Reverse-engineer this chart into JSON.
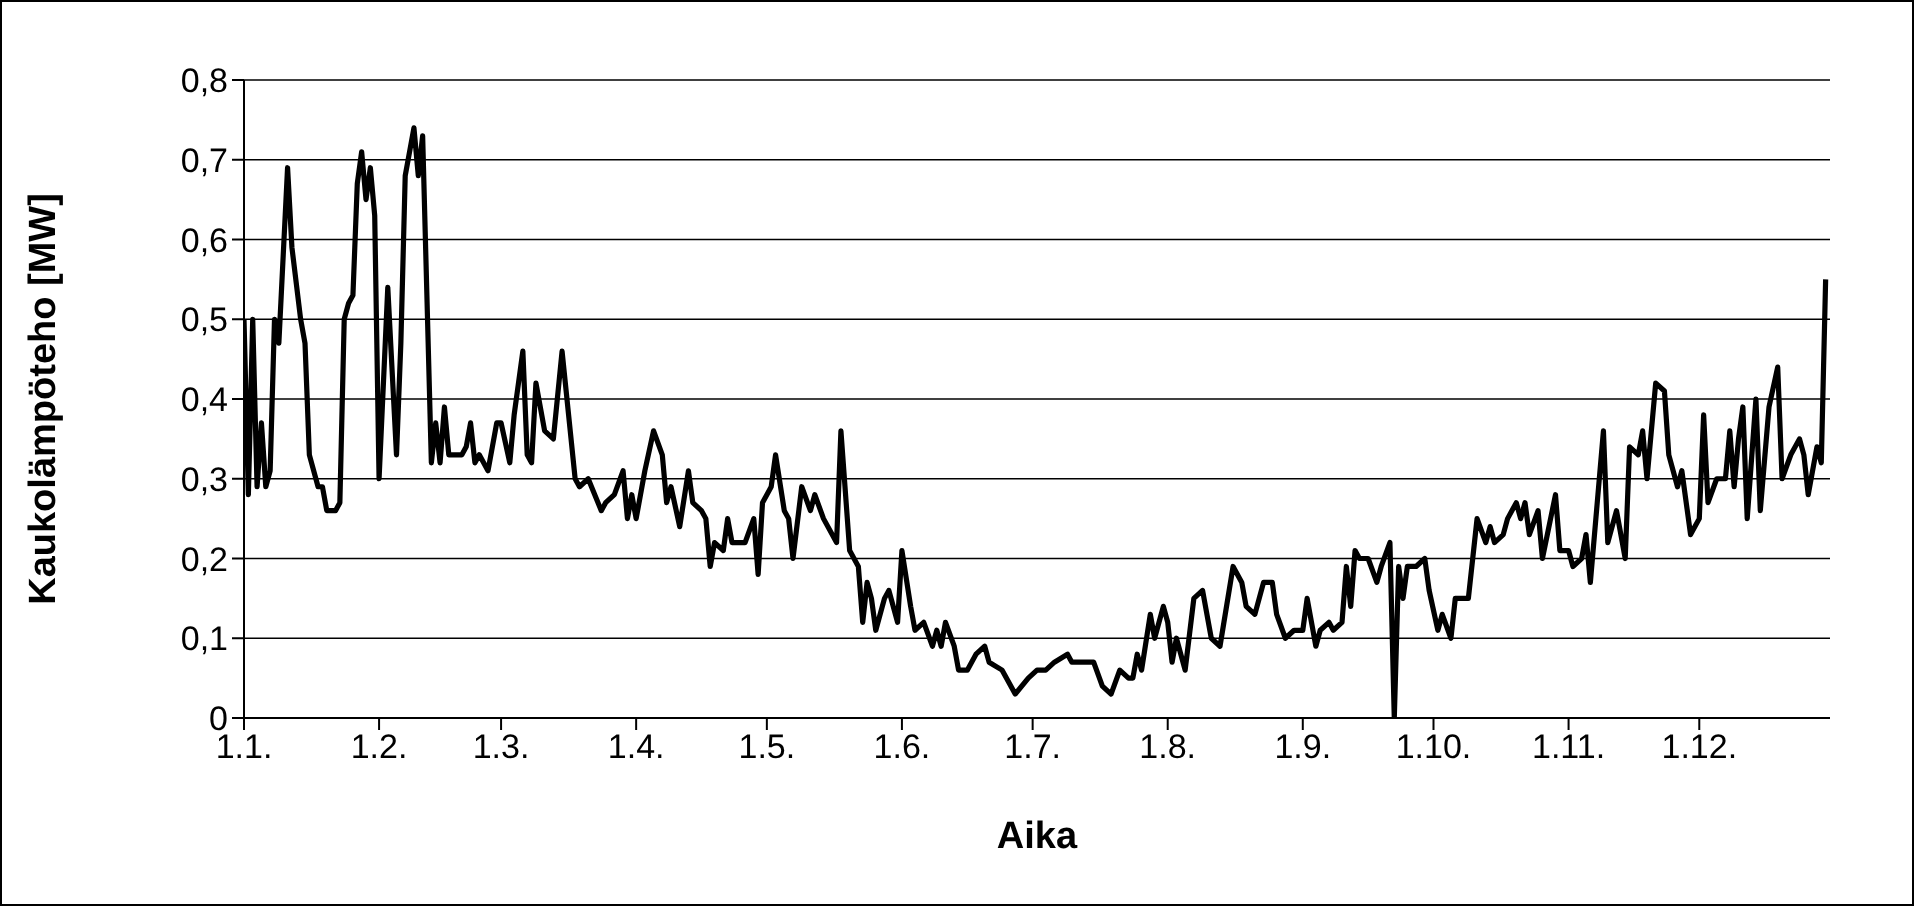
{
  "chart_data": {
    "type": "line",
    "xlabel": "Aika",
    "ylabel": "Kaukolämpöteho [MW]",
    "xlim": [
      "--01-01",
      "--12-31"
    ],
    "xticks": [
      {
        "value": "--01-01",
        "label": "1.1."
      },
      {
        "value": "--02-01",
        "label": "1.2."
      },
      {
        "value": "--03-01",
        "label": "1.3."
      },
      {
        "value": "--04-01",
        "label": "1.4."
      },
      {
        "value": "--05-01",
        "label": "1.5."
      },
      {
        "value": "--06-01",
        "label": "1.6."
      },
      {
        "value": "--07-01",
        "label": "1.7."
      },
      {
        "value": "--08-01",
        "label": "1.8."
      },
      {
        "value": "--09-01",
        "label": "1.9."
      },
      {
        "value": "--10-01",
        "label": "1.10."
      },
      {
        "value": "--11-01",
        "label": "1.11."
      },
      {
        "value": "--12-01",
        "label": "1.12."
      }
    ],
    "ylim": [
      0,
      0.8
    ],
    "yticks": [
      0,
      {
        "value": 0.1,
        "label": "0,1"
      },
      {
        "value": 0.2,
        "label": "0,2"
      },
      {
        "value": 0.3,
        "label": "0,3"
      },
      {
        "value": 0.4,
        "label": "0,4"
      },
      {
        "value": 0.5,
        "label": "0,5"
      },
      {
        "value": 0.6,
        "label": "0,6"
      },
      {
        "value": 0.7,
        "label": "0,7"
      },
      {
        "value": 0.8,
        "label": "0,8"
      }
    ],
    "grid": "y",
    "legend": false,
    "marker": "none",
    "line_style": "solid",
    "x": [
      "--01-01",
      "--01-02",
      "--01-03",
      "--01-04",
      "--01-05",
      "--01-06",
      "--01-07",
      "--01-08",
      "--01-09",
      "--01-11",
      "--01-12",
      "--01-14",
      "--01-15",
      "--01-16",
      "--01-18",
      "--01-19",
      "--01-20",
      "--01-22",
      "--01-23",
      "--01-24",
      "--01-25",
      "--01-26",
      "--01-27",
      "--01-28",
      "--01-29",
      "--01-30",
      "--01-31",
      "--02-01",
      "--02-03",
      "--02-05",
      "--02-06",
      "--02-07",
      "--02-09",
      "--02-10",
      "--02-11",
      "--02-13",
      "--02-14",
      "--02-15",
      "--02-16",
      "--02-17",
      "--02-20",
      "--02-21",
      "--02-22",
      "--02-23",
      "--02-24",
      "--02-26",
      "--02-27",
      "--02-28",
      "--03-01",
      "--03-03",
      "--03-04",
      "--03-06",
      "--03-07",
      "--03-08",
      "--03-09",
      "--03-11",
      "--03-13",
      "--03-15",
      "--03-18",
      "--03-19",
      "--03-21",
      "--03-24",
      "--03-25",
      "--03-27",
      "--03-29",
      "--03-30",
      "--03-31",
      "--04-01",
      "--04-03",
      "--04-05",
      "--04-07",
      "--04-08",
      "--04-09",
      "--04-11",
      "--04-13",
      "--04-14",
      "--04-16",
      "--04-17",
      "--04-18",
      "--04-19",
      "--04-21",
      "--04-22",
      "--04-23",
      "--04-26",
      "--04-28",
      "--04-29",
      "--04-30",
      "--05-02",
      "--05-03",
      "--05-05",
      "--05-06",
      "--05-07",
      "--05-09",
      "--05-11",
      "--05-12",
      "--05-14",
      "--05-17",
      "--05-18",
      "--05-20",
      "--05-22",
      "--05-23",
      "--05-24",
      "--05-25",
      "--05-26",
      "--05-28",
      "--05-29",
      "--05-31",
      "--06-01",
      "--06-03",
      "--06-04",
      "--06-06",
      "--06-08",
      "--06-09",
      "--06-10",
      "--06-11",
      "--06-13",
      "--06-14",
      "--06-16",
      "--06-18",
      "--06-20",
      "--06-21",
      "--06-24",
      "--06-27",
      "--06-30",
      "--07-02",
      "--07-04",
      "--07-06",
      "--07-09",
      "--07-10",
      "--07-12",
      "--07-15",
      "--07-17",
      "--07-19",
      "--07-21",
      "--07-23",
      "--07-24",
      "--07-25",
      "--07-26",
      "--07-28",
      "--07-29",
      "--07-31",
      "--08-01",
      "--08-02",
      "--08-03",
      "--08-05",
      "--08-07",
      "--08-09",
      "--08-11",
      "--08-13",
      "--08-16",
      "--08-18",
      "--08-19",
      "--08-21",
      "--08-22",
      "--08-23",
      "--08-25",
      "--08-26",
      "--08-28",
      "--08-30",
      "--09-01",
      "--09-02",
      "--09-04",
      "--09-05",
      "--09-07",
      "--09-08",
      "--09-10",
      "--09-11",
      "--09-12",
      "--09-13",
      "--09-14",
      "--09-16",
      "--09-18",
      "--09-19",
      "--09-21",
      "--09-22",
      "--09-23",
      "--09-24",
      "--09-25",
      "--09-27",
      "--09-29",
      "--09-30",
      "--10-02",
      "--10-03",
      "--10-05",
      "--10-06",
      "--10-09",
      "--10-11",
      "--10-13",
      "--10-14",
      "--10-15",
      "--10-17",
      "--10-18",
      "--10-20",
      "--10-21",
      "--10-22",
      "--10-23",
      "--10-25",
      "--10-26",
      "--10-29",
      "--10-30",
      "--11-01",
      "--11-02",
      "--11-04",
      "--11-05",
      "--11-06",
      "--11-09",
      "--11-10",
      "--11-12",
      "--11-14",
      "--11-15",
      "--11-17",
      "--11-18",
      "--11-19",
      "--11-21",
      "--11-23",
      "--11-24",
      "--11-26",
      "--11-27",
      "--11-29",
      "--11-30",
      "--12-01",
      "--12-02",
      "--12-03",
      "--12-05",
      "--12-07",
      "--12-08",
      "--12-09",
      "--12-10",
      "--12-11",
      "--12-12",
      "--12-14",
      "--12-15",
      "--12-17",
      "--12-19",
      "--12-20",
      "--12-22",
      "--12-24",
      "--12-25",
      "--12-26",
      "--12-28",
      "--12-29",
      "--12-30"
    ],
    "series": [
      {
        "color": "#000000",
        "values": [
          0.5,
          0.28,
          0.5,
          0.29,
          0.37,
          0.29,
          0.31,
          0.5,
          0.47,
          0.69,
          0.59,
          0.5,
          0.47,
          0.33,
          0.29,
          0.29,
          0.26,
          0.26,
          0.27,
          0.5,
          0.52,
          0.53,
          0.67,
          0.71,
          0.65,
          0.69,
          0.63,
          0.3,
          0.54,
          0.33,
          0.47,
          0.68,
          0.74,
          0.68,
          0.73,
          0.32,
          0.37,
          0.32,
          0.39,
          0.33,
          0.33,
          0.34,
          0.37,
          0.32,
          0.33,
          0.31,
          0.34,
          0.37,
          0.37,
          0.32,
          0.38,
          0.46,
          0.33,
          0.32,
          0.42,
          0.36,
          0.35,
          0.46,
          0.3,
          0.29,
          0.3,
          0.26,
          0.27,
          0.28,
          0.31,
          0.25,
          0.28,
          0.25,
          0.31,
          0.36,
          0.33,
          0.27,
          0.29,
          0.24,
          0.31,
          0.27,
          0.26,
          0.25,
          0.19,
          0.22,
          0.21,
          0.25,
          0.22,
          0.22,
          0.25,
          0.18,
          0.27,
          0.29,
          0.33,
          0.26,
          0.25,
          0.2,
          0.29,
          0.26,
          0.28,
          0.25,
          0.22,
          0.36,
          0.21,
          0.19,
          0.12,
          0.17,
          0.15,
          0.11,
          0.15,
          0.16,
          0.12,
          0.21,
          0.14,
          0.11,
          0.12,
          0.09,
          0.11,
          0.09,
          0.12,
          0.09,
          0.06,
          0.06,
          0.08,
          0.09,
          0.07,
          0.06,
          0.03,
          0.05,
          0.06,
          0.06,
          0.07,
          0.08,
          0.07,
          0.07,
          0.07,
          0.04,
          0.03,
          0.06,
          0.05,
          0.05,
          0.08,
          0.06,
          0.13,
          0.1,
          0.14,
          0.12,
          0.07,
          0.1,
          0.06,
          0.15,
          0.16,
          0.1,
          0.09,
          0.19,
          0.17,
          0.14,
          0.13,
          0.15,
          0.17,
          0.17,
          0.13,
          0.1,
          0.11,
          0.11,
          0.15,
          0.09,
          0.11,
          0.12,
          0.11,
          0.12,
          0.19,
          0.14,
          0.21,
          0.2,
          0.2,
          0.17,
          0.19,
          0.22,
          0.0,
          0.19,
          0.15,
          0.19,
          0.19,
          0.2,
          0.16,
          0.11,
          0.13,
          0.1,
          0.15,
          0.15,
          0.25,
          0.22,
          0.24,
          0.22,
          0.23,
          0.25,
          0.27,
          0.25,
          0.27,
          0.23,
          0.26,
          0.2,
          0.28,
          0.21,
          0.21,
          0.19,
          0.2,
          0.23,
          0.17,
          0.36,
          0.22,
          0.26,
          0.2,
          0.34,
          0.33,
          0.36,
          0.3,
          0.42,
          0.41,
          0.33,
          0.29,
          0.31,
          0.23,
          0.24,
          0.25,
          0.38,
          0.27,
          0.3,
          0.3,
          0.36,
          0.29,
          0.35,
          0.39,
          0.25,
          0.4,
          0.26,
          0.39,
          0.44,
          0.3,
          0.33,
          0.35,
          0.33,
          0.28,
          0.34,
          0.32,
          0.55
        ]
      }
    ]
  }
}
